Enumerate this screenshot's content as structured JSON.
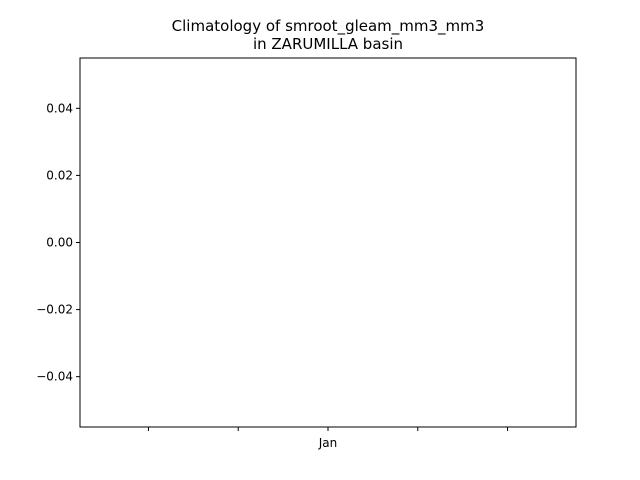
{
  "chart_data": {
    "type": "line",
    "title_lines": [
      "Climatology of smroot_gleam_mm3_mm3",
      "in ZARUMILLA basin"
    ],
    "xlabel": "",
    "ylabel": "",
    "x_ticks": [
      "",
      "",
      "Jan",
      "",
      ""
    ],
    "y_ticks": [
      "0.04",
      "0.02",
      "0.00",
      "−0.02",
      "−0.04"
    ],
    "y_tick_values": [
      0.04,
      0.02,
      0.0,
      -0.02,
      -0.04
    ],
    "ylim": [
      -0.055,
      0.055
    ],
    "grid": false,
    "legend": "none",
    "series": []
  }
}
